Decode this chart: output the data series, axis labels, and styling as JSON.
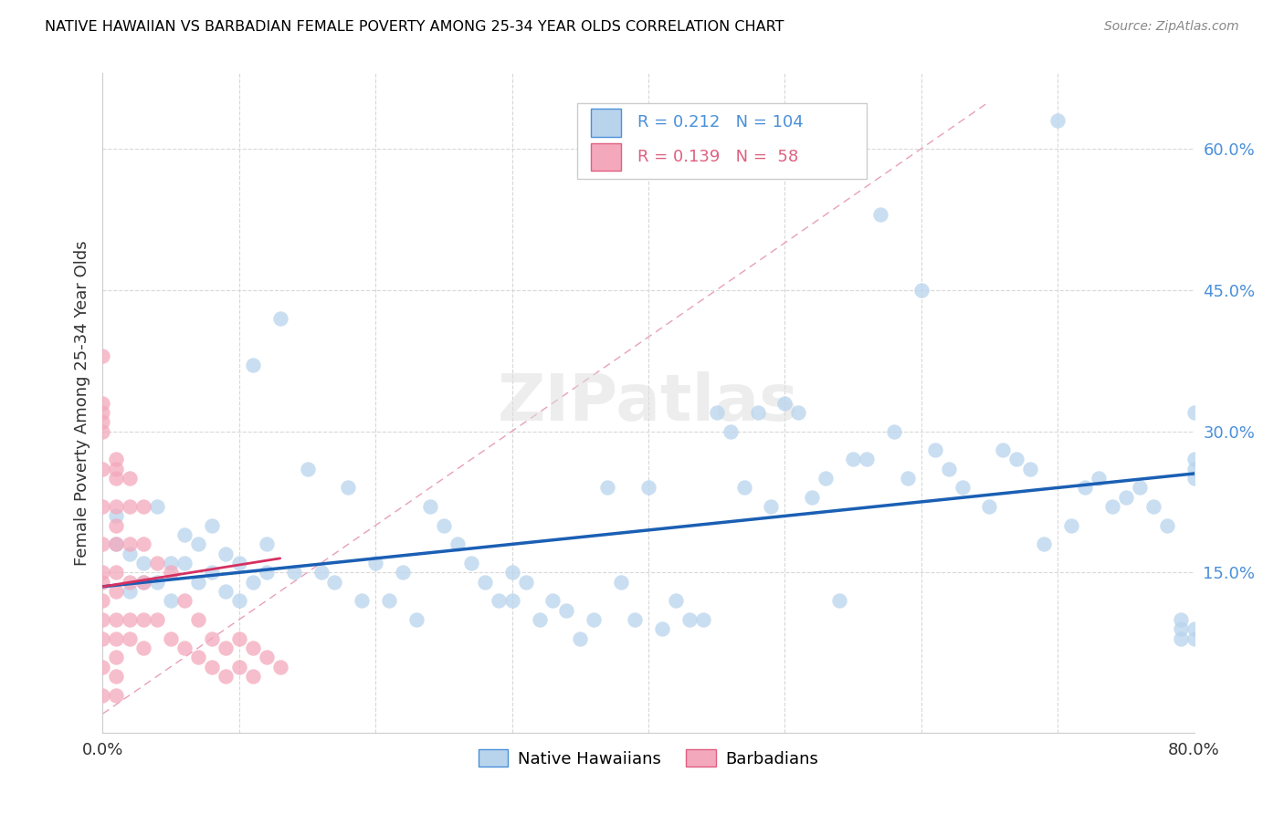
{
  "title": "NATIVE HAWAIIAN VS BARBADIAN FEMALE POVERTY AMONG 25-34 YEAR OLDS CORRELATION CHART",
  "source": "Source: ZipAtlas.com",
  "ylabel": "Female Poverty Among 25-34 Year Olds",
  "xlim": [
    0.0,
    0.8
  ],
  "ylim": [
    -0.02,
    0.68
  ],
  "ytick_right_labels": [
    "15.0%",
    "30.0%",
    "45.0%",
    "60.0%"
  ],
  "ytick_right_values": [
    0.15,
    0.3,
    0.45,
    0.6
  ],
  "native_hawaiian_color": "#b8d4ed",
  "barbadian_color": "#f4a8bb",
  "trend_line_color_nh": "#1a5fb4",
  "trend_line_color_b": "#d63060",
  "diagonal_line_color": "#e8b4c0",
  "legend_R_nh": "0.212",
  "legend_N_nh": "104",
  "legend_R_b": "0.139",
  "legend_N_b": "58",
  "legend_color_nh": "#4a90d9",
  "legend_color_b": "#e06080",
  "watermark": "ZIPatlas",
  "nh_trend_x0": 0.0,
  "nh_trend_y0": 0.135,
  "nh_trend_x1": 0.8,
  "nh_trend_y1": 0.255,
  "b_trend_x0": 0.0,
  "b_trend_y0": 0.135,
  "b_trend_x1": 0.13,
  "b_trend_y1": 0.165
}
